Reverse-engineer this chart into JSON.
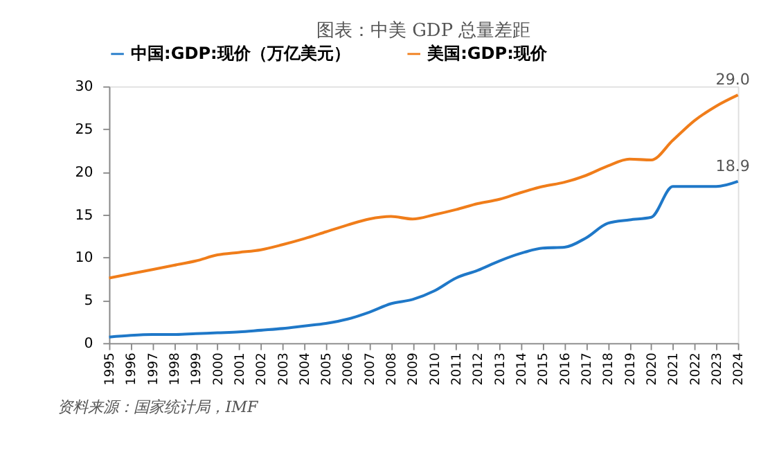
{
  "chart_data": {
    "type": "line",
    "title": "图表：中美 GDP 总量差距",
    "categories": [
      "1995",
      "1996",
      "1997",
      "1998",
      "1999",
      "2000",
      "2001",
      "2002",
      "2003",
      "2004",
      "2005",
      "2006",
      "2007",
      "2008",
      "2009",
      "2010",
      "2011",
      "2012",
      "2013",
      "2014",
      "2015",
      "2016",
      "2017",
      "2018",
      "2019",
      "2020",
      "2021",
      "2022",
      "2023",
      "2024"
    ],
    "series": [
      {
        "name": "中国:GDP:现价（万亿美元）",
        "color": "#1f78c8",
        "values": [
          0.7,
          0.9,
          1.0,
          1.0,
          1.1,
          1.2,
          1.3,
          1.5,
          1.7,
          2.0,
          2.3,
          2.8,
          3.6,
          4.6,
          5.1,
          6.1,
          7.6,
          8.5,
          9.6,
          10.5,
          11.1,
          11.2,
          12.3,
          14.0,
          14.4,
          14.7,
          18.3,
          18.3,
          18.3,
          18.9
        ],
        "value_labels": [
          null,
          null,
          null,
          null,
          null,
          null,
          null,
          null,
          null,
          null,
          null,
          null,
          null,
          null,
          null,
          null,
          null,
          null,
          null,
          null,
          null,
          null,
          null,
          null,
          null,
          null,
          null,
          null,
          null,
          "18.9"
        ]
      },
      {
        "name": "美国:GDP:现价",
        "color": "#f07d1a",
        "values": [
          7.6,
          8.1,
          8.6,
          9.1,
          9.6,
          10.3,
          10.6,
          10.9,
          11.5,
          12.2,
          13.0,
          13.8,
          14.5,
          14.8,
          14.5,
          15.0,
          15.6,
          16.3,
          16.8,
          17.6,
          18.3,
          18.8,
          19.6,
          20.7,
          21.5,
          21.4,
          23.7,
          26.0,
          27.7,
          29.0
        ],
        "value_labels": [
          null,
          null,
          null,
          null,
          null,
          null,
          null,
          null,
          null,
          null,
          null,
          null,
          null,
          null,
          null,
          null,
          null,
          null,
          null,
          null,
          null,
          null,
          null,
          null,
          null,
          null,
          null,
          null,
          null,
          "29.0"
        ]
      }
    ],
    "ylim": [
      0,
      30
    ],
    "yticks": [
      0,
      5,
      10,
      15,
      20,
      25,
      30
    ],
    "grid": false,
    "legend": "top",
    "marker": "none",
    "line_style": "solid",
    "annotations": [
      "资料来源：国家统计局，IMF"
    ]
  }
}
